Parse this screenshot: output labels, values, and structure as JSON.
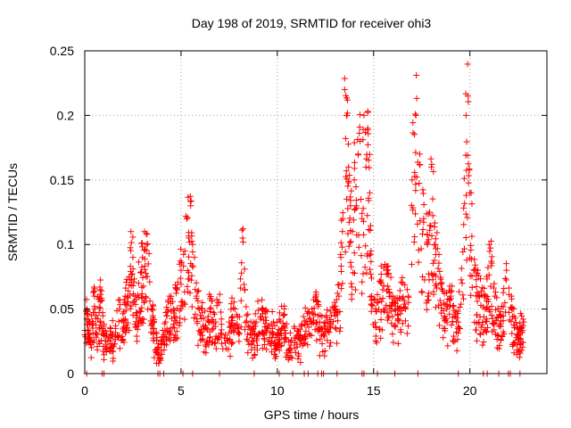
{
  "chart_data": {
    "type": "scatter",
    "title": "Day 198 of 2019, SRMTID for receiver ohi3",
    "xlabel": "GPS time / hours",
    "ylabel": "SRMTID / TECUs",
    "xlim": [
      0,
      24
    ],
    "ylim": [
      0,
      0.25
    ],
    "xticks": [
      0,
      5,
      10,
      15,
      20
    ],
    "xtick_labels": [
      "0",
      "5",
      "10",
      "15",
      "20"
    ],
    "yticks": [
      0,
      0.05,
      0.1,
      0.15,
      0.2,
      0.25
    ],
    "ytick_labels": [
      "0",
      "0.05",
      "0.1",
      "0.15",
      "0.2",
      "0.25"
    ],
    "grid": true,
    "marker": "+",
    "color": "#ff0000",
    "x_range_of_data": [
      0,
      22.8
    ],
    "features": [
      {
        "hours": [
          0,
          2
        ],
        "level": 0.035
      },
      {
        "hours": [
          2.3,
          3.3
        ],
        "level": 0.1
      },
      {
        "hours": [
          5.3,
          5.6
        ],
        "level": 0.13
      },
      {
        "hours": [
          8.2,
          8.2
        ],
        "level": 0.105
      },
      {
        "hours": [
          13.4,
          14.8
        ],
        "level": 0.22
      },
      {
        "hours": [
          16.9,
          18.0
        ],
        "level": 0.2
      },
      {
        "hours": [
          19.7,
          19.9
        ],
        "level": 0.215
      }
    ],
    "series": [
      {
        "name": "SRMTID",
        "points": [
          [
            0.0,
            0.03
          ],
          [
            0.1,
            0.05
          ],
          [
            0.2,
            0.04
          ],
          [
            0.3,
            0.025
          ],
          [
            0.5,
            0.06
          ],
          [
            0.6,
            0.045
          ],
          [
            0.8,
            0.065
          ],
          [
            1.0,
            0.03
          ],
          [
            1.2,
            0.025
          ],
          [
            1.4,
            0.03
          ],
          [
            1.6,
            0.035
          ],
          [
            1.8,
            0.05
          ],
          [
            2.0,
            0.04
          ],
          [
            2.1,
            0.06
          ],
          [
            2.3,
            0.075
          ],
          [
            2.4,
            0.11
          ],
          [
            2.5,
            0.09
          ],
          [
            2.6,
            0.06
          ],
          [
            2.7,
            0.045
          ],
          [
            2.8,
            0.07
          ],
          [
            3.0,
            0.09
          ],
          [
            3.1,
            0.11
          ],
          [
            3.2,
            0.1
          ],
          [
            3.3,
            0.085
          ],
          [
            3.5,
            0.05
          ],
          [
            3.6,
            0.035
          ],
          [
            3.8,
            0.02
          ],
          [
            3.9,
            0.015
          ],
          [
            4.0,
            0.025
          ],
          [
            4.2,
            0.04
          ],
          [
            4.4,
            0.06
          ],
          [
            4.6,
            0.05
          ],
          [
            4.8,
            0.065
          ],
          [
            5.0,
            0.08
          ],
          [
            5.2,
            0.095
          ],
          [
            5.3,
            0.12
          ],
          [
            5.4,
            0.105
          ],
          [
            5.5,
            0.13
          ],
          [
            5.6,
            0.1
          ],
          [
            5.8,
            0.06
          ],
          [
            6.0,
            0.045
          ],
          [
            6.3,
            0.035
          ],
          [
            6.5,
            0.05
          ],
          [
            6.8,
            0.04
          ],
          [
            7.0,
            0.055
          ],
          [
            7.3,
            0.03
          ],
          [
            7.5,
            0.04
          ],
          [
            7.8,
            0.05
          ],
          [
            8.0,
            0.035
          ],
          [
            8.2,
            0.105
          ],
          [
            8.4,
            0.045
          ],
          [
            8.6,
            0.03
          ],
          [
            8.9,
            0.04
          ],
          [
            9.2,
            0.05
          ],
          [
            9.5,
            0.035
          ],
          [
            9.8,
            0.04
          ],
          [
            10.0,
            0.03
          ],
          [
            10.3,
            0.045
          ],
          [
            10.6,
            0.025
          ],
          [
            10.9,
            0.035
          ],
          [
            11.2,
            0.03
          ],
          [
            11.5,
            0.04
          ],
          [
            11.8,
            0.05
          ],
          [
            12.0,
            0.06
          ],
          [
            12.2,
            0.04
          ],
          [
            12.5,
            0.035
          ],
          [
            12.8,
            0.045
          ],
          [
            13.0,
            0.05
          ],
          [
            13.2,
            0.06
          ],
          [
            13.3,
            0.09
          ],
          [
            13.4,
            0.12
          ],
          [
            13.5,
            0.22
          ],
          [
            13.6,
            0.2
          ],
          [
            13.7,
            0.16
          ],
          [
            13.8,
            0.13
          ],
          [
            13.9,
            0.11
          ],
          [
            14.0,
            0.15
          ],
          [
            14.1,
            0.13
          ],
          [
            14.2,
            0.17
          ],
          [
            14.3,
            0.18
          ],
          [
            14.4,
            0.12
          ],
          [
            14.5,
            0.2
          ],
          [
            14.6,
            0.16
          ],
          [
            14.7,
            0.19
          ],
          [
            14.8,
            0.14
          ],
          [
            14.9,
            0.06
          ],
          [
            15.1,
            0.05
          ],
          [
            15.4,
            0.07
          ],
          [
            15.7,
            0.08
          ],
          [
            16.0,
            0.06
          ],
          [
            16.3,
            0.05
          ],
          [
            16.5,
            0.07
          ],
          [
            16.8,
            0.06
          ],
          [
            17.0,
            0.15
          ],
          [
            17.2,
            0.2
          ],
          [
            17.4,
            0.17
          ],
          [
            17.6,
            0.12
          ],
          [
            17.8,
            0.1
          ],
          [
            18.0,
            0.16
          ],
          [
            18.2,
            0.1
          ],
          [
            18.5,
            0.07
          ],
          [
            18.8,
            0.05
          ],
          [
            19.0,
            0.06
          ],
          [
            19.3,
            0.04
          ],
          [
            19.6,
            0.07
          ],
          [
            19.8,
            0.2
          ],
          [
            19.9,
            0.215
          ],
          [
            20.0,
            0.14
          ],
          [
            20.2,
            0.08
          ],
          [
            20.5,
            0.06
          ],
          [
            20.8,
            0.05
          ],
          [
            21.0,
            0.1
          ],
          [
            21.3,
            0.06
          ],
          [
            21.6,
            0.045
          ],
          [
            21.9,
            0.08
          ],
          [
            22.2,
            0.05
          ],
          [
            22.5,
            0.03
          ],
          [
            22.8,
            0.04
          ]
        ]
      }
    ]
  }
}
